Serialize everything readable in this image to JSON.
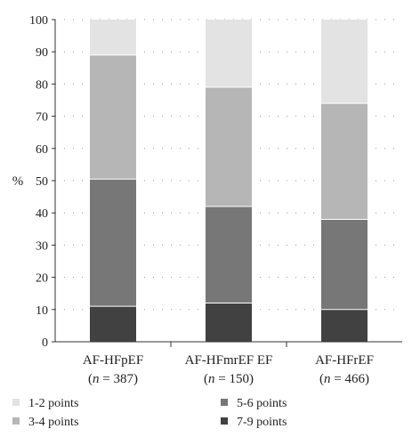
{
  "chart_data": {
    "type": "bar",
    "stacked": true,
    "categories": [
      {
        "name": "AF-HFpEF",
        "n_prefix": "n",
        "n_suffix": " = 387"
      },
      {
        "name": "AF-HFmrEF EF",
        "n_prefix": "n",
        "n_suffix": " = 150"
      },
      {
        "name": "AF-HFrEF",
        "n_prefix": "n",
        "n_suffix": " = 466"
      }
    ],
    "series": [
      {
        "name": "7-9 points",
        "color": "#414141",
        "values": [
          11,
          12,
          10
        ]
      },
      {
        "name": "5-6 points",
        "color": "#777777",
        "values": [
          39.5,
          30,
          28
        ]
      },
      {
        "name": "3-4 points",
        "color": "#b6b6b6",
        "values": [
          38.5,
          37,
          36
        ]
      },
      {
        "name": "1-2 points",
        "color": "#e3e3e3",
        "values": [
          11,
          21,
          26
        ]
      }
    ],
    "ylabel": "%",
    "ylim": [
      0,
      100
    ],
    "yticks": [
      0,
      10,
      20,
      30,
      40,
      50,
      60,
      70,
      80,
      90,
      100
    ],
    "grid": "horizontal dotted",
    "legend": {
      "placement": "bottom",
      "rows": [
        [
          "1-2 points",
          "5-6 points"
        ],
        [
          "3-4 points",
          "7-9 points"
        ]
      ]
    }
  }
}
